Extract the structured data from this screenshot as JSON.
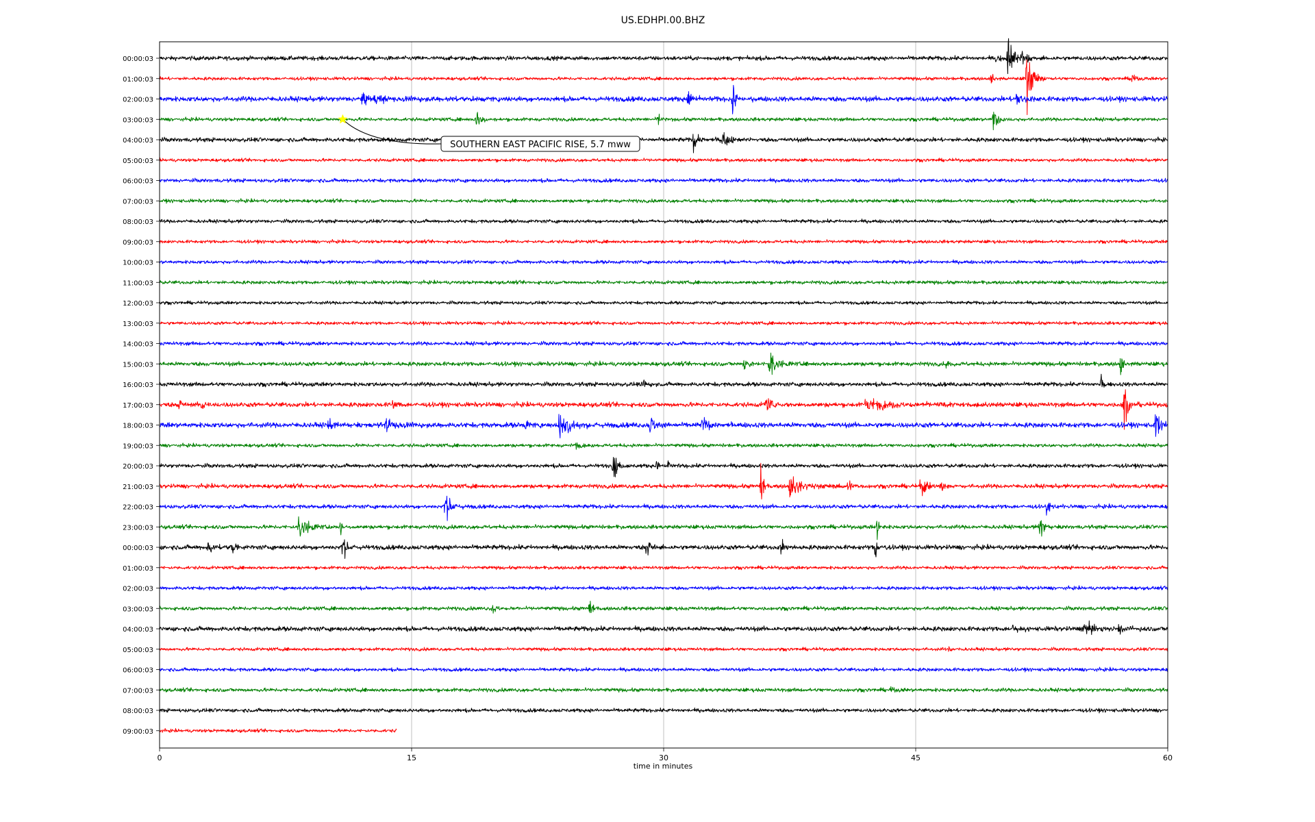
{
  "chart_data": {
    "type": "line",
    "title": "US.EDHPI.00.BHZ",
    "xlabel": "time in minutes",
    "ylabel": "",
    "xlim": [
      0,
      60
    ],
    "x_ticks": [
      0,
      15,
      30,
      45,
      60
    ],
    "grid": "vertical",
    "colors": [
      "#000000",
      "#ff0000",
      "#0000ff",
      "#008000"
    ],
    "row_labels": [
      "00:00:03",
      "01:00:03",
      "02:00:03",
      "03:00:03",
      "04:00:03",
      "05:00:03",
      "06:00:03",
      "07:00:03",
      "08:00:03",
      "09:00:03",
      "10:00:03",
      "11:00:03",
      "12:00:03",
      "13:00:03",
      "14:00:03",
      "15:00:03",
      "16:00:03",
      "17:00:03",
      "18:00:03",
      "19:00:03",
      "20:00:03",
      "21:00:03",
      "22:00:03",
      "23:00:03",
      "00:00:03",
      "01:00:03",
      "02:00:03",
      "03:00:03",
      "04:00:03",
      "05:00:03",
      "06:00:03",
      "07:00:03",
      "08:00:03",
      "09:00:03"
    ],
    "series": [
      {
        "row": 0,
        "noise": 0.18,
        "end_minute": 60,
        "events": [
          [
            50.5,
            1.8,
            0.8
          ],
          [
            51.3,
            0.9,
            0.6
          ],
          [
            49.8,
            0.5,
            0.4
          ]
        ]
      },
      {
        "row": 1,
        "noise": 0.14,
        "end_minute": 60,
        "events": [
          [
            51.6,
            2.2,
            0.8
          ],
          [
            49.5,
            0.6,
            0.4
          ],
          [
            57.9,
            0.6,
            0.3
          ]
        ]
      },
      {
        "row": 2,
        "noise": 0.22,
        "end_minute": 60,
        "events": [
          [
            31.5,
            1.0,
            0.6
          ],
          [
            34.1,
            1.4,
            0.5
          ],
          [
            51.0,
            0.8,
            0.8
          ],
          [
            12.0,
            0.4,
            4
          ]
        ]
      },
      {
        "row": 3,
        "noise": 0.15,
        "end_minute": 60,
        "events": [
          [
            18.9,
            0.9,
            0.6
          ],
          [
            29.7,
            0.6,
            0.4
          ],
          [
            49.6,
            1.3,
            0.6
          ]
        ]
      },
      {
        "row": 4,
        "noise": 0.18,
        "end_minute": 60,
        "events": [
          [
            31.8,
            0.9,
            0.6
          ],
          [
            33.5,
            0.7,
            0.9
          ]
        ]
      },
      {
        "row": 5,
        "noise": 0.14,
        "end_minute": 60,
        "events": []
      },
      {
        "row": 6,
        "noise": 0.16,
        "end_minute": 60,
        "events": []
      },
      {
        "row": 7,
        "noise": 0.15,
        "end_minute": 60,
        "events": []
      },
      {
        "row": 8,
        "noise": 0.15,
        "end_minute": 60,
        "events": []
      },
      {
        "row": 9,
        "noise": 0.14,
        "end_minute": 60,
        "events": []
      },
      {
        "row": 10,
        "noise": 0.15,
        "end_minute": 60,
        "events": []
      },
      {
        "row": 11,
        "noise": 0.15,
        "end_minute": 60,
        "events": [
          [
            44.6,
            0.3,
            0.4
          ]
        ]
      },
      {
        "row": 12,
        "noise": 0.14,
        "end_minute": 60,
        "events": []
      },
      {
        "row": 13,
        "noise": 0.14,
        "end_minute": 60,
        "events": []
      },
      {
        "row": 14,
        "noise": 0.16,
        "end_minute": 60,
        "events": []
      },
      {
        "row": 15,
        "noise": 0.18,
        "end_minute": 60,
        "events": [
          [
            34.8,
            0.7,
            0.5
          ],
          [
            36.3,
            1.4,
            0.9
          ],
          [
            46.8,
            0.5,
            0.3
          ],
          [
            57.2,
            1.0,
            0.4
          ]
        ]
      },
      {
        "row": 16,
        "noise": 0.18,
        "end_minute": 60,
        "events": [
          [
            28.8,
            0.5,
            0.4
          ],
          [
            56.0,
            0.8,
            0.3
          ]
        ]
      },
      {
        "row": 17,
        "noise": 0.2,
        "end_minute": 60,
        "events": [
          [
            1.2,
            0.7,
            0.3
          ],
          [
            2.5,
            0.8,
            0.4
          ],
          [
            13.9,
            0.9,
            0.3
          ],
          [
            36.1,
            1.1,
            0.5
          ],
          [
            42.0,
            0.5,
            3.5
          ],
          [
            57.4,
            2.2,
            0.4
          ]
        ]
      },
      {
        "row": 18,
        "noise": 0.22,
        "end_minute": 60,
        "events": [
          [
            13.5,
            0.6,
            1.5
          ],
          [
            21.8,
            0.6,
            0.4
          ],
          [
            23.8,
            1.2,
            1.5
          ],
          [
            29.2,
            0.9,
            0.6
          ],
          [
            32.3,
            0.7,
            0.9
          ],
          [
            59.3,
            1.4,
            0.6
          ],
          [
            10.0,
            0.4,
            1.2
          ]
        ]
      },
      {
        "row": 19,
        "noise": 0.15,
        "end_minute": 60,
        "events": [
          [
            24.8,
            0.3,
            0.5
          ]
        ]
      },
      {
        "row": 20,
        "noise": 0.17,
        "end_minute": 60,
        "events": [
          [
            27.0,
            1.3,
            0.5
          ],
          [
            30.2,
            0.5,
            0.5
          ],
          [
            29.6,
            0.9,
            0.2
          ]
        ]
      },
      {
        "row": 21,
        "noise": 0.18,
        "end_minute": 60,
        "events": [
          [
            35.8,
            1.8,
            0.3
          ],
          [
            37.5,
            1.0,
            1.5
          ],
          [
            41.0,
            0.7,
            0.4
          ],
          [
            45.3,
            1.0,
            0.8
          ],
          [
            46.5,
            0.6,
            0.5
          ]
        ]
      },
      {
        "row": 22,
        "noise": 0.17,
        "end_minute": 60,
        "events": [
          [
            17.0,
            1.0,
            0.9
          ],
          [
            52.8,
            0.6,
            0.6
          ]
        ]
      },
      {
        "row": 23,
        "noise": 0.17,
        "end_minute": 60,
        "events": [
          [
            8.3,
            1.3,
            1.0
          ],
          [
            10.8,
            0.7,
            0.2
          ],
          [
            42.7,
            0.9,
            0.3
          ],
          [
            52.4,
            0.9,
            0.6
          ]
        ]
      },
      {
        "row": 24,
        "noise": 0.2,
        "end_minute": 60,
        "events": [
          [
            2.9,
            0.5,
            0.8
          ],
          [
            4.3,
            0.8,
            0.3
          ],
          [
            10.9,
            0.9,
            0.6
          ],
          [
            29.0,
            1.2,
            0.5
          ],
          [
            37.0,
            0.7,
            0.5
          ],
          [
            42.6,
            1.1,
            0.3
          ]
        ]
      },
      {
        "row": 25,
        "noise": 0.14,
        "end_minute": 60,
        "events": []
      },
      {
        "row": 26,
        "noise": 0.15,
        "end_minute": 60,
        "events": []
      },
      {
        "row": 27,
        "noise": 0.16,
        "end_minute": 60,
        "events": [
          [
            19.8,
            0.4,
            0.7
          ],
          [
            25.6,
            0.7,
            0.4
          ]
        ]
      },
      {
        "row": 28,
        "noise": 0.2,
        "end_minute": 60,
        "events": [
          [
            50.8,
            0.5,
            0.4
          ],
          [
            55.0,
            0.6,
            1.2
          ],
          [
            57.0,
            0.5,
            0.7
          ]
        ]
      },
      {
        "row": 29,
        "noise": 0.14,
        "end_minute": 60,
        "events": [
          [
            47.0,
            0.3,
            0.3
          ]
        ]
      },
      {
        "row": 30,
        "noise": 0.15,
        "end_minute": 60,
        "events": []
      },
      {
        "row": 31,
        "noise": 0.16,
        "end_minute": 60,
        "events": [
          [
            43.5,
            0.3,
            0.4
          ]
        ]
      },
      {
        "row": 32,
        "noise": 0.16,
        "end_minute": 60,
        "events": []
      },
      {
        "row": 33,
        "noise": 0.14,
        "end_minute": 14.1,
        "events": []
      }
    ],
    "annotations": [
      {
        "text": "SOUTHERN EAST PACIFIC RISE, 5.7 mww",
        "row": 3,
        "minute": 10.9,
        "marker": "star",
        "marker_color": "#ffff00"
      }
    ]
  }
}
